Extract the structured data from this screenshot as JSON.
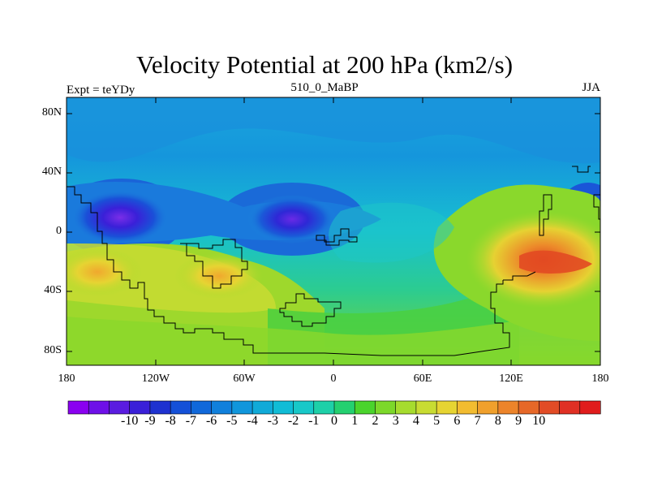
{
  "map": {
    "title": "Velocity Potential at 200 hPa (km2/s)",
    "left_label": "Expt = teYDy",
    "center_label": "510_0_MaBP",
    "right_label": "JJA",
    "lat_labels": [
      "80N",
      "40N",
      "0",
      "40S",
      "80S"
    ],
    "lon_labels": [
      "180",
      "120W",
      "60W",
      "0",
      "60E",
      "120E",
      "180"
    ]
  },
  "colorbar": {
    "labels": [
      "-10",
      "-9",
      "-8",
      "-7",
      "-6",
      "-5",
      "-4",
      "-3",
      "-2",
      "-1",
      "0",
      "1",
      "2",
      "3",
      "4",
      "5",
      "6",
      "7",
      "8",
      "9",
      "10"
    ],
    "colors": [
      "#8a00f0",
      "#6e10e8",
      "#5a1ce0",
      "#3a20d8",
      "#1e32d0",
      "#1450d8",
      "#1068da",
      "#1080dc",
      "#1096dc",
      "#10aad8",
      "#10bcd6",
      "#18c8c8",
      "#1ed0a8",
      "#24d070",
      "#4ad42c",
      "#7cd82a",
      "#a6dc2e",
      "#c8dc32",
      "#e6d432",
      "#f2bc30",
      "#f0a02c",
      "#ec842a",
      "#e66828",
      "#e24c26",
      "#e03024",
      "#e01c1c"
    ]
  },
  "colors": {
    "deep_low": "#7020e0",
    "low": "#1a5ad8",
    "mid_low": "#16a0dc",
    "neutral": "#18c8c8",
    "mid_high": "#46d446",
    "high": "#e8d232",
    "peak": "#e04a20"
  }
}
